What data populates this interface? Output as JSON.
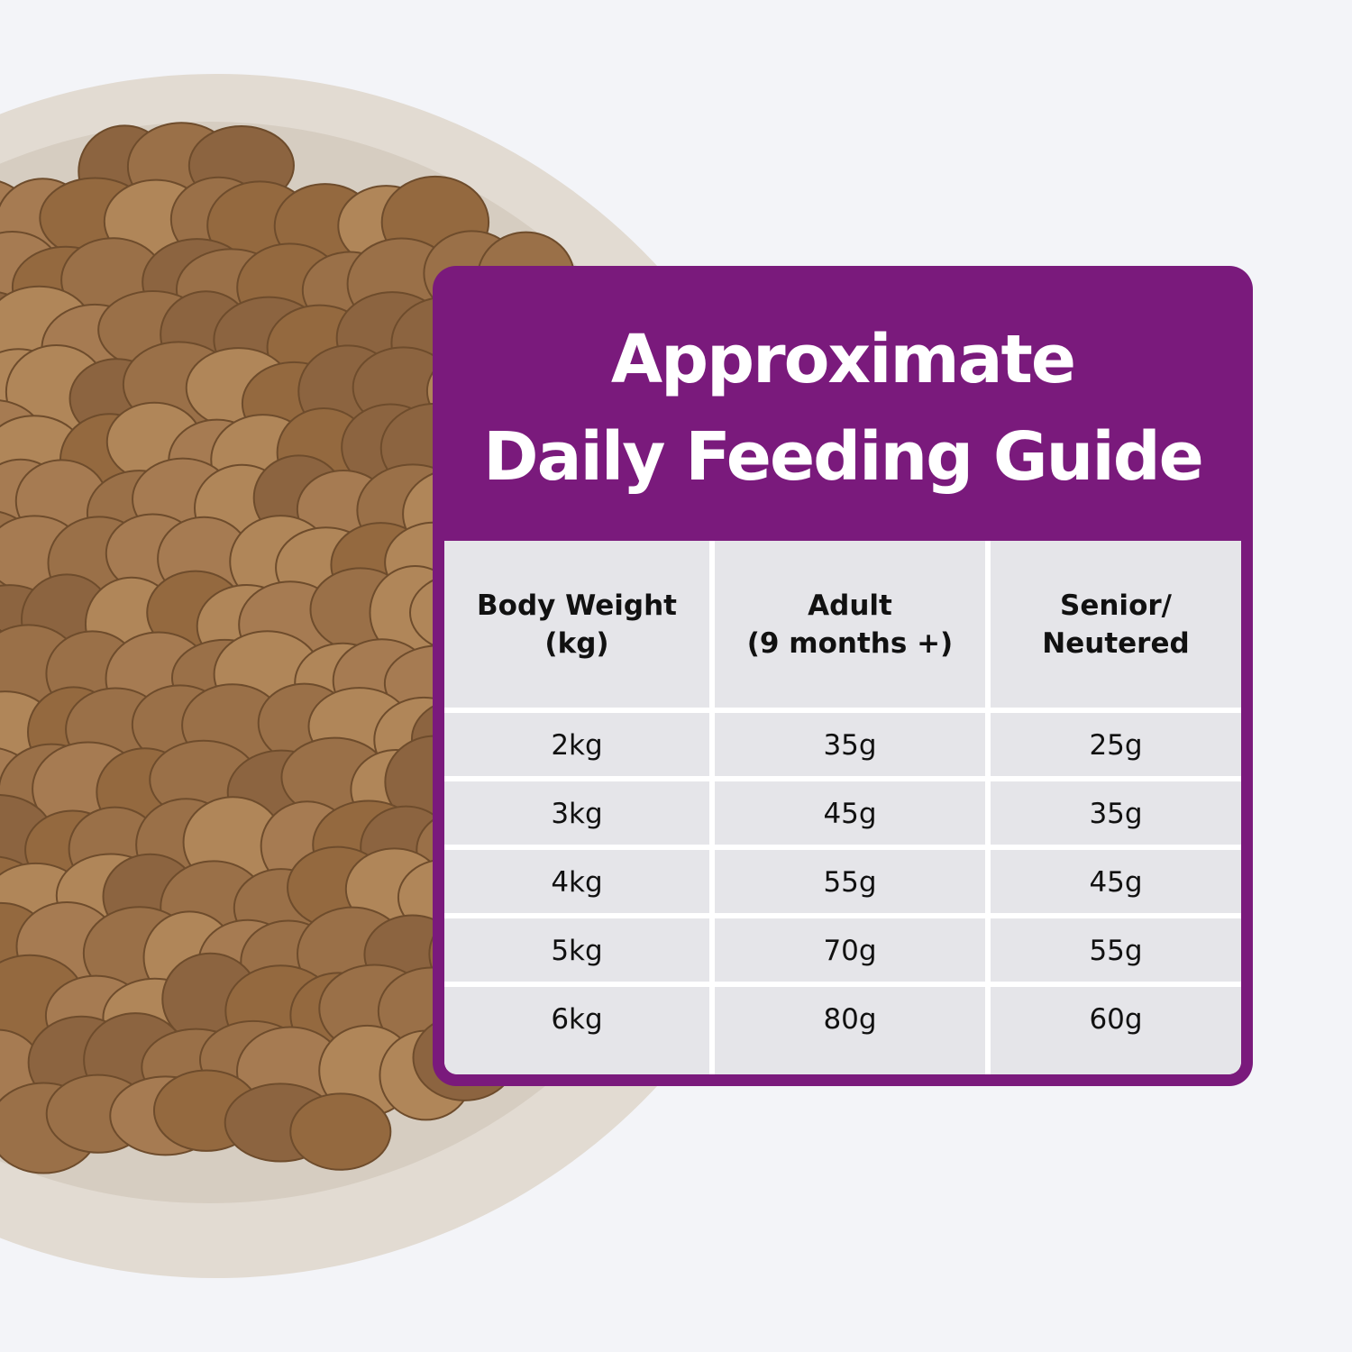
{
  "title": [
    "Approximate",
    "Daily Feeding Guide"
  ],
  "table": {
    "header": [
      [
        "Body Weight",
        "(kg)"
      ],
      [
        "Adult",
        "(9 months +)"
      ],
      [
        "Senior/",
        "Neutered"
      ]
    ],
    "rows": [
      [
        "2kg",
        "35g",
        "25g"
      ],
      [
        "3kg",
        "45g",
        "35g"
      ],
      [
        "4kg",
        "55g",
        "45g"
      ],
      [
        "5kg",
        "70g",
        "55g"
      ],
      [
        "6kg",
        "80g",
        "60g"
      ]
    ]
  }
}
